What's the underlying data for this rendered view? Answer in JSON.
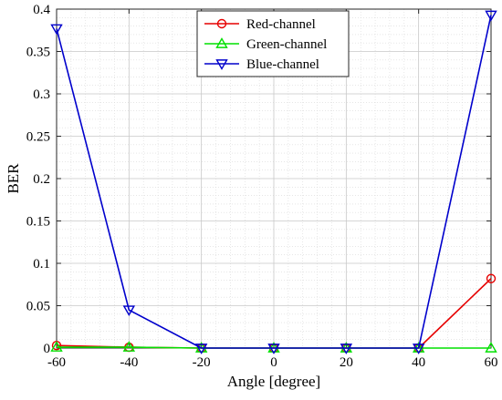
{
  "chart_data": {
    "type": "line",
    "xlabel": "Angle [degree]",
    "ylabel": "BER",
    "x": [
      -60,
      -40,
      -20,
      0,
      20,
      40,
      60
    ],
    "xlim": [
      -60,
      60
    ],
    "ylim": [
      0,
      0.4
    ],
    "xticks": [
      -60,
      -40,
      -20,
      0,
      20,
      40,
      60
    ],
    "yticks": [
      0,
      0.05,
      0.1,
      0.15,
      0.2,
      0.25,
      0.3,
      0.35,
      0.4
    ],
    "xtick_labels": [
      "-60",
      "-40",
      "-20",
      "0",
      "20",
      "40",
      "60"
    ],
    "ytick_labels": [
      "0",
      "0.05",
      "0.1",
      "0.15",
      "0.2",
      "0.25",
      "0.3",
      "0.35",
      "0.4"
    ],
    "grid": true,
    "minor_grid": true,
    "legend_position": "top-center",
    "series": [
      {
        "name": "Red-channel",
        "color": "#e60000",
        "marker": "circle",
        "values": [
          0.003,
          0.001,
          0,
          0,
          0,
          0,
          0.082
        ]
      },
      {
        "name": "Green-channel",
        "color": "#00e000",
        "marker": "triangle-up",
        "values": [
          0.001,
          0.001,
          0,
          0,
          0,
          0,
          0
        ]
      },
      {
        "name": "Blue-channel",
        "color": "#0000cc",
        "marker": "triangle-down",
        "values": [
          0.377,
          0.045,
          0,
          0,
          0,
          0,
          0.393
        ]
      }
    ]
  }
}
